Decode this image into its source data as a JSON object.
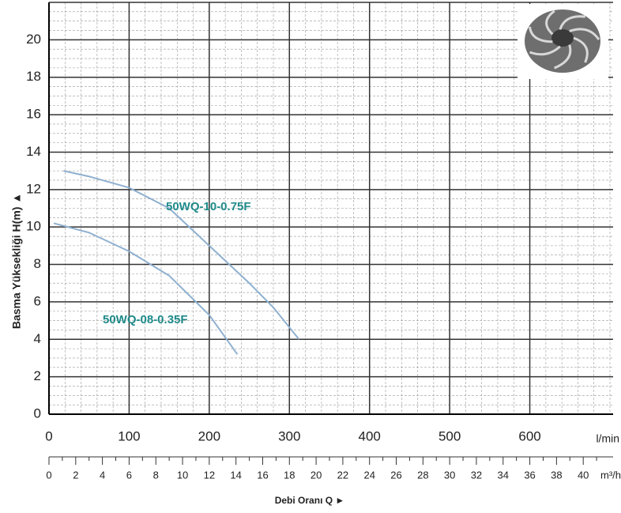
{
  "chart_data": {
    "type": "line",
    "ylabel": "Basma Yüksekliği H(m) ▲",
    "xlabel": "Debi Oranı Q ►",
    "x_unit": "l/min",
    "x2_unit": "m³/h",
    "xlim": [
      0,
      700
    ],
    "xticks": [
      0,
      100,
      200,
      300,
      400,
      500,
      600
    ],
    "x2lim": [
      0,
      42
    ],
    "x2ticks": [
      0,
      2,
      4,
      6,
      8,
      10,
      12,
      14,
      16,
      18,
      20,
      22,
      24,
      26,
      28,
      30,
      32,
      34,
      36,
      38,
      40
    ],
    "ylim": [
      0,
      22
    ],
    "yticks": [
      0,
      2,
      4,
      6,
      8,
      10,
      12,
      14,
      16,
      18,
      20
    ],
    "grid": true,
    "series": [
      {
        "name": "50WQ-10-0.75F",
        "color": "#8fb0d0",
        "x": [
          18,
          50,
          100,
          150,
          200,
          250,
          280,
          312
        ],
        "values": [
          13.0,
          12.7,
          12.1,
          11.0,
          9.0,
          7.0,
          5.7,
          4.0
        ]
      },
      {
        "name": "50WQ-08-0.35F",
        "color": "#8fb0d0",
        "x": [
          6,
          50,
          100,
          150,
          200,
          235
        ],
        "values": [
          10.2,
          9.7,
          8.7,
          7.4,
          5.3,
          3.2
        ]
      }
    ]
  }
}
